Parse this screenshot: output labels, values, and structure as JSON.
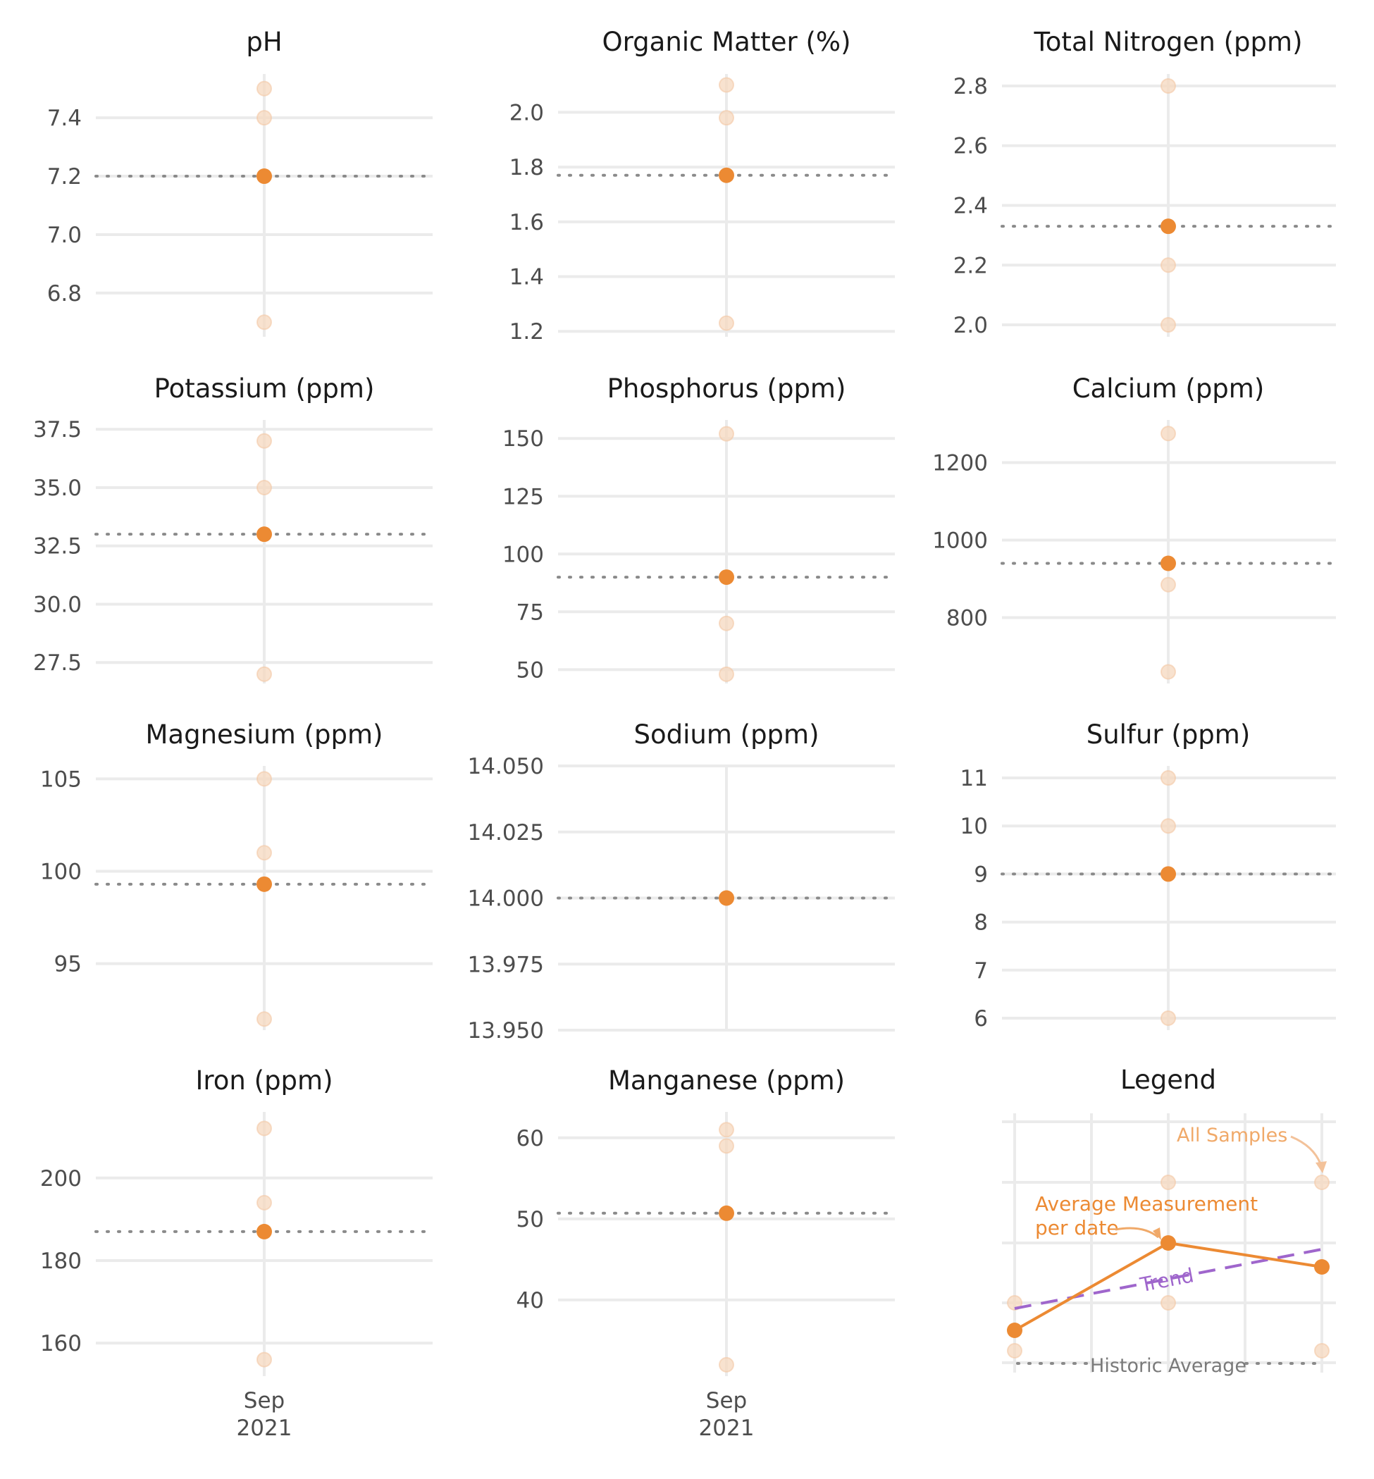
{
  "colors": {
    "average": "#ec8a33",
    "sample": "#f6d8bf",
    "historic": "#8a8a8a",
    "trend": "#9f66cc",
    "grid": "#ebebeb"
  },
  "chart_data": [
    {
      "type": "scatter",
      "title": "pH",
      "ylim": [
        6.65,
        7.55
      ],
      "yticks": [
        6.8,
        7.0,
        7.2,
        7.4
      ],
      "tick_labels": [
        "6.8",
        "7.0",
        "7.2",
        "7.4"
      ],
      "x": "Sep 2021",
      "samples": [
        6.7,
        7.2,
        7.4,
        7.5
      ],
      "average": 7.2,
      "historic_average": 7.2
    },
    {
      "type": "scatter",
      "title": "Organic Matter (%)",
      "ylim": [
        1.18,
        2.14
      ],
      "yticks": [
        1.2,
        1.4,
        1.6,
        1.8,
        2.0
      ],
      "tick_labels": [
        "1.2",
        "1.4",
        "1.6",
        "1.8",
        "2.0"
      ],
      "x": "Sep 2021",
      "samples": [
        1.23,
        1.98,
        2.1
      ],
      "average": 1.77,
      "historic_average": 1.77
    },
    {
      "type": "scatter",
      "title": "Total Nitrogen (ppm)",
      "ylim": [
        1.96,
        2.84
      ],
      "yticks": [
        2.0,
        2.2,
        2.4,
        2.6,
        2.8
      ],
      "tick_labels": [
        "2.0",
        "2.2",
        "2.4",
        "2.6",
        "2.8"
      ],
      "x": "Sep 2021",
      "samples": [
        2.0,
        2.2,
        2.8
      ],
      "average": 2.33,
      "historic_average": 2.33
    },
    {
      "type": "scatter",
      "title": "Potassium (ppm)",
      "ylim": [
        26.6,
        37.9
      ],
      "yticks": [
        27.5,
        30.0,
        32.5,
        35.0,
        37.5
      ],
      "tick_labels": [
        "27.5",
        "30.0",
        "32.5",
        "35.0",
        "37.5"
      ],
      "x": "Sep 2021",
      "samples": [
        27,
        35,
        37
      ],
      "average": 33,
      "historic_average": 33
    },
    {
      "type": "scatter",
      "title": "Phosphorus (ppm)",
      "ylim": [
        44,
        158
      ],
      "yticks": [
        50,
        75,
        100,
        125,
        150
      ],
      "tick_labels": [
        "50",
        "75",
        "100",
        "125",
        "150"
      ],
      "x": "Sep 2021",
      "samples": [
        48,
        70,
        152
      ],
      "average": 90,
      "historic_average": 90
    },
    {
      "type": "scatter",
      "title": "Calcium (ppm)",
      "ylim": [
        630,
        1310
      ],
      "yticks": [
        800,
        1000,
        1200
      ],
      "tick_labels": [
        "800",
        "1000",
        "1200"
      ],
      "x": "Sep 2021",
      "samples": [
        660,
        885,
        1275
      ],
      "average": 940,
      "historic_average": 940
    },
    {
      "type": "scatter",
      "title": "Magnesium (ppm)",
      "ylim": [
        91.4,
        105.7
      ],
      "yticks": [
        95,
        100,
        105
      ],
      "tick_labels": [
        "95",
        "100",
        "105"
      ],
      "x": "Sep 2021",
      "samples": [
        92,
        101,
        105
      ],
      "average": 99.3,
      "historic_average": 99.3
    },
    {
      "type": "scatter",
      "title": "Sodium (ppm)",
      "ylim": [
        13.95,
        14.05
      ],
      "yticks": [
        13.95,
        13.975,
        14.0,
        14.025,
        14.05
      ],
      "tick_labels": [
        "13.950",
        "13.975",
        "14.000",
        "14.025",
        "14.050"
      ],
      "x": "Sep 2021",
      "samples": [
        14.0
      ],
      "average": 14.0,
      "historic_average": 14.0
    },
    {
      "type": "scatter",
      "title": "Sulfur (ppm)",
      "ylim": [
        5.75,
        11.25
      ],
      "yticks": [
        6,
        7,
        8,
        9,
        10,
        11
      ],
      "tick_labels": [
        "6",
        "7",
        "8",
        "9",
        "10",
        "11"
      ],
      "x": "Sep 2021",
      "samples": [
        6,
        9,
        10,
        11
      ],
      "average": 9,
      "historic_average": 9
    },
    {
      "type": "scatter",
      "title": "Iron (ppm)",
      "ylim": [
        152,
        216
      ],
      "yticks": [
        160,
        180,
        200
      ],
      "tick_labels": [
        "160",
        "180",
        "200"
      ],
      "x": "Sep 2021",
      "samples": [
        156,
        194,
        212
      ],
      "average": 187,
      "historic_average": 187
    },
    {
      "type": "scatter",
      "title": "Manganese (ppm)",
      "ylim": [
        30.6,
        63.2
      ],
      "yticks": [
        40,
        50,
        60
      ],
      "tick_labels": [
        "40",
        "50",
        "60"
      ],
      "x": "Sep 2021",
      "samples": [
        32,
        59,
        61
      ],
      "average": 50.7,
      "historic_average": 50.7
    }
  ],
  "x_axis": {
    "month": "Sep",
    "year": "2021"
  },
  "legend": {
    "title": "Legend",
    "all_samples_label": "All Samples",
    "average_label_line1": "Average Measurement",
    "average_label_line2": "per date",
    "trend_label": "Trend",
    "historic_label": "Historic Average"
  }
}
